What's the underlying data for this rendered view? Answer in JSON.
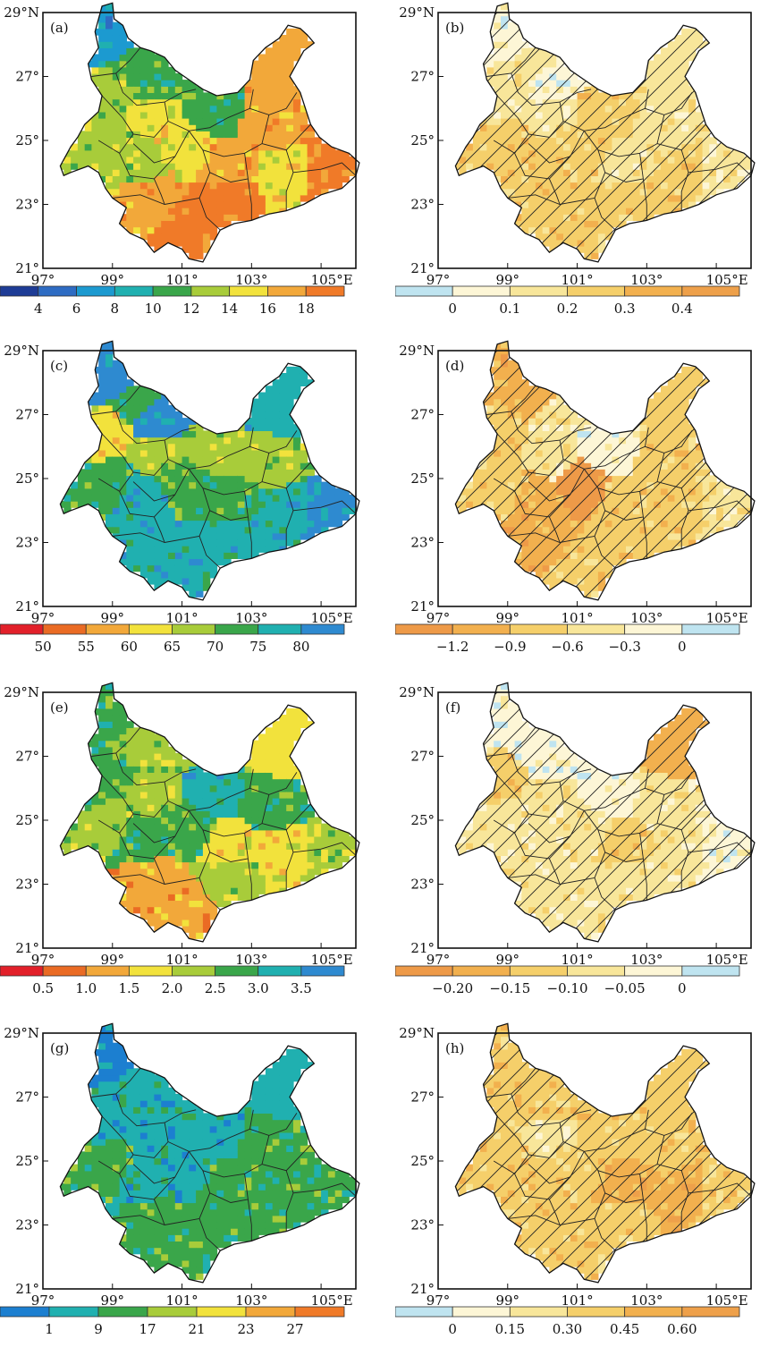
{
  "figure": {
    "lon_ticks": [
      "97°",
      "99°",
      "101°",
      "103°",
      "105°E"
    ],
    "lat_ticks": [
      "29°N",
      "27°",
      "25°",
      "23°",
      "21°"
    ],
    "panels": [
      {
        "id": "a",
        "label": "(a)",
        "hatch": false,
        "colors": [
          "#1e3c96",
          "#2e6cc3",
          "#1c9ad0",
          "#20b0b0",
          "#3aa64a",
          "#a8cc3a",
          "#f2e23c",
          "#f2a83a",
          "#f07a28"
        ],
        "regions": [
          2,
          4,
          5,
          4,
          6,
          4,
          7,
          7,
          5,
          5,
          6,
          7,
          6,
          7,
          8,
          8,
          8
        ],
        "colorbar_colors": [
          "#1e3c96",
          "#2e6cc3",
          "#1c9ad0",
          "#20b0b0",
          "#3aa64a",
          "#a8cc3a",
          "#f2e23c",
          "#f2a83a",
          "#f07a28"
        ],
        "colorbar_ticks": [
          "4",
          "6",
          "8",
          "10",
          "12",
          "14",
          "16",
          "18"
        ]
      },
      {
        "id": "b",
        "label": "(b)",
        "hatch": true,
        "colors": [
          "#bfe4f0",
          "#fdf6d6",
          "#f8e69a",
          "#f5cf6a",
          "#f2b04e",
          "#eea04a"
        ],
        "regions": [
          1,
          2,
          2,
          1,
          2,
          3,
          2,
          2,
          3,
          3,
          3,
          2,
          3,
          3,
          3,
          3,
          2
        ],
        "colorbar_colors": [
          "#bfe4f0",
          "#fdf6d6",
          "#f8e69a",
          "#f5cf6a",
          "#f2b04e",
          "#eea04a"
        ],
        "colorbar_ticks": [
          "0",
          "0.1",
          "0.2",
          "0.3",
          "0.4"
        ]
      },
      {
        "id": "c",
        "label": "(c)",
        "hatch": false,
        "colors": [
          "#e2202a",
          "#ea6b24",
          "#f2a83a",
          "#f2e23c",
          "#a8cc3a",
          "#3aa64a",
          "#20b0b0",
          "#2e8ad0"
        ],
        "regions": [
          7,
          5,
          3,
          7,
          4,
          4,
          6,
          4,
          5,
          6,
          5,
          5,
          6,
          6,
          6,
          6,
          7
        ],
        "colorbar_colors": [
          "#e2202a",
          "#ea6b24",
          "#f2a83a",
          "#f2e23c",
          "#a8cc3a",
          "#3aa64a",
          "#20b0b0",
          "#2e8ad0"
        ],
        "colorbar_ticks": [
          "50",
          "55",
          "60",
          "65",
          "70",
          "75",
          "80"
        ]
      },
      {
        "id": "d",
        "label": "(d)",
        "hatch": true,
        "colors": [
          "#ee9a48",
          "#f2b04e",
          "#f5cf6a",
          "#f8e69a",
          "#fdf6d6",
          "#bfe4f0"
        ],
        "regions": [
          1,
          1,
          2,
          3,
          3,
          4,
          2,
          2,
          2,
          1,
          0,
          2,
          2,
          1,
          2,
          2,
          3
        ],
        "colorbar_colors": [
          "#ee9a48",
          "#f2b04e",
          "#f5cf6a",
          "#f8e69a",
          "#fdf6d6",
          "#bfe4f0"
        ],
        "colorbar_ticks": [
          "−1.2",
          "−0.9",
          "−0.6",
          "−0.3",
          "0"
        ]
      },
      {
        "id": "e",
        "label": "(e)",
        "hatch": false,
        "colors": [
          "#e2202a",
          "#ea6b24",
          "#f2a83a",
          "#f2e23c",
          "#a8cc3a",
          "#3aa64a",
          "#20b0b0",
          "#2e8ad0"
        ],
        "regions": [
          5,
          4,
          5,
          4,
          4,
          6,
          3,
          5,
          4,
          5,
          5,
          3,
          3,
          2,
          2,
          4,
          4
        ],
        "colorbar_colors": [
          "#e2202a",
          "#ea6b24",
          "#f2a83a",
          "#f2e23c",
          "#a8cc3a",
          "#3aa64a",
          "#20b0b0",
          "#2e8ad0"
        ],
        "colorbar_ticks": [
          "0.5",
          "1.0",
          "1.5",
          "2.0",
          "2.5",
          "3.0",
          "3.5"
        ]
      },
      {
        "id": "f",
        "label": "(f)",
        "hatch": true,
        "colors": [
          "#ee9a48",
          "#f2b04e",
          "#f5cf6a",
          "#f8e69a",
          "#fdf6d6",
          "#bfe4f0"
        ],
        "regions": [
          4,
          4,
          2,
          4,
          3,
          4,
          1,
          3,
          3,
          3,
          3,
          2,
          3,
          3,
          3,
          3,
          4
        ],
        "colorbar_colors": [
          "#ee9a48",
          "#f2b04e",
          "#f5cf6a",
          "#f8e69a",
          "#fdf6d6",
          "#bfe4f0"
        ],
        "colorbar_ticks": [
          "−0.20",
          "−0.15",
          "−0.10",
          "−0.05",
          "0"
        ]
      },
      {
        "id": "g",
        "label": "(g)",
        "hatch": false,
        "colors": [
          "#1c7fd0",
          "#20b0b0",
          "#3aa64a",
          "#a8cc3a",
          "#f2e23c",
          "#f2a83a",
          "#f07a28"
        ],
        "regions": [
          0,
          1,
          1,
          1,
          1,
          1,
          1,
          2,
          2,
          1,
          1,
          2,
          2,
          2,
          2,
          2,
          2
        ],
        "colorbar_colors": [
          "#1c7fd0",
          "#20b0b0",
          "#3aa64a",
          "#a8cc3a",
          "#f2e23c",
          "#f2a83a",
          "#f07a28"
        ],
        "colorbar_ticks": [
          "1",
          "9",
          "17",
          "21",
          "23",
          "27"
        ]
      },
      {
        "id": "h",
        "label": "(h)",
        "hatch": true,
        "colors": [
          "#bfe4f0",
          "#fdf6d6",
          "#f8e69a",
          "#f5cf6a",
          "#f2b04e",
          "#eea04a"
        ],
        "regions": [
          3,
          3,
          3,
          3,
          2,
          3,
          3,
          3,
          3,
          3,
          3,
          4,
          4,
          3,
          3,
          3,
          3
        ],
        "colorbar_colors": [
          "#bfe4f0",
          "#fdf6d6",
          "#f8e69a",
          "#f5cf6a",
          "#f2b04e",
          "#eea04a"
        ],
        "colorbar_ticks": [
          "0",
          "0.15",
          "0.30",
          "0.45",
          "0.60"
        ]
      }
    ]
  }
}
